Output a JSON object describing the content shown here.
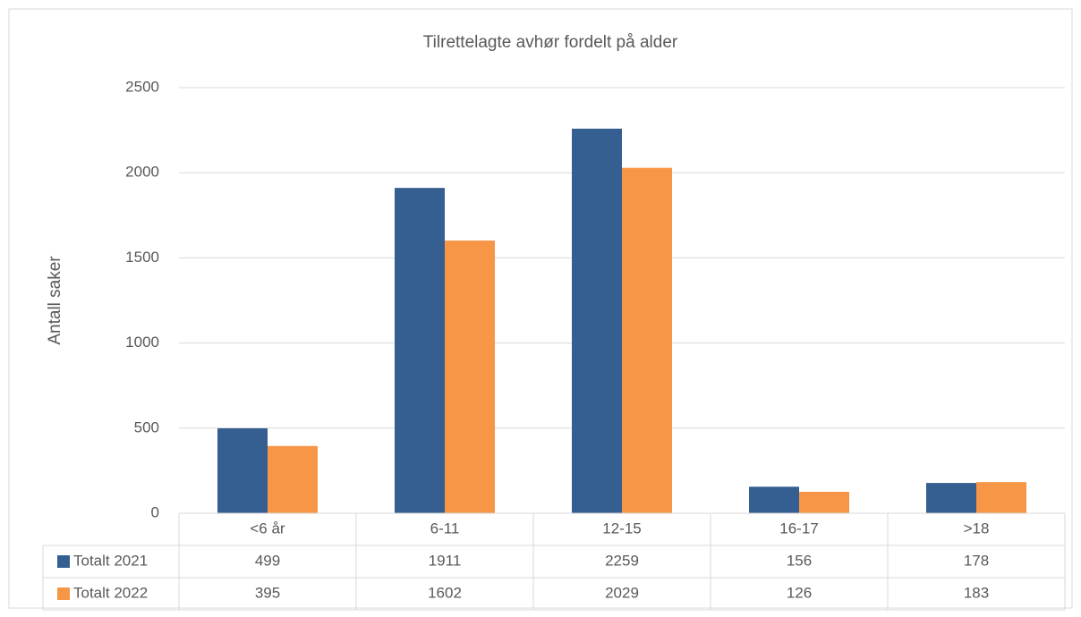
{
  "chart_data": {
    "type": "bar",
    "title": "Tilrettelagte avhør fordelt på alder",
    "y_label": "Antall saker",
    "categories": [
      "<6 år",
      "6-11",
      "12-15",
      "16-17",
      ">18"
    ],
    "series": [
      {
        "name": "Totalt 2021",
        "color": "#355f91",
        "values": [
          499,
          1911,
          2259,
          156,
          178
        ]
      },
      {
        "name": "Totalt 2022",
        "color": "#f79646",
        "values": [
          395,
          1602,
          2029,
          126,
          183
        ]
      }
    ],
    "ylim": [
      0,
      2500
    ],
    "yticks": [
      0,
      500,
      1000,
      1500,
      2000,
      2500
    ],
    "grid": true,
    "data_table": true
  }
}
